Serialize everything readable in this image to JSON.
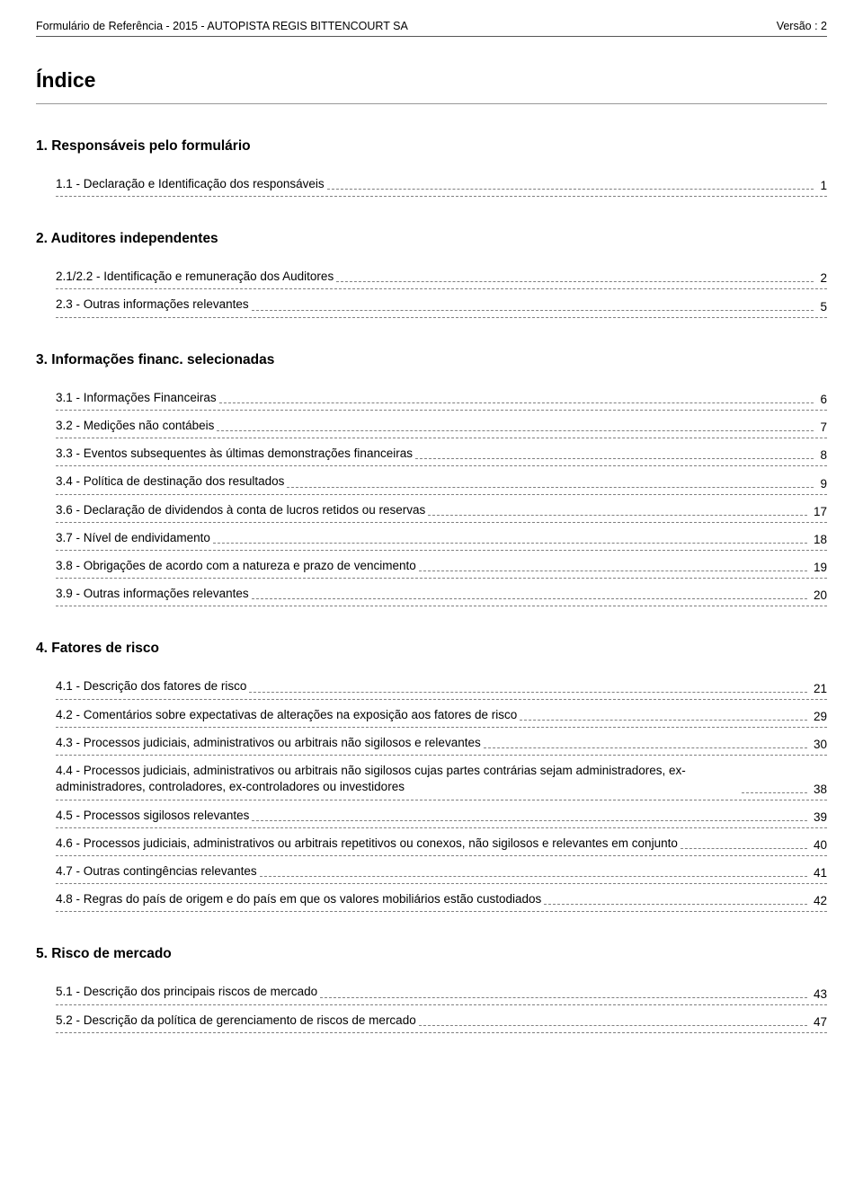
{
  "header": {
    "left": "Formulário de Referência - 2015 - AUTOPISTA REGIS BITTENCOURT SA",
    "right": "Versão : 2"
  },
  "index_title": "Índice",
  "sections": [
    {
      "heading": "1. Responsáveis pelo formulário",
      "items": [
        {
          "label": "1.1 - Declaração e Identificação dos responsáveis",
          "page": "1"
        }
      ]
    },
    {
      "heading": "2. Auditores independentes",
      "items": [
        {
          "label": "2.1/2.2 - Identificação e remuneração dos Auditores",
          "page": "2"
        },
        {
          "label": "2.3 - Outras informações relevantes",
          "page": "5"
        }
      ]
    },
    {
      "heading": "3. Informações financ. selecionadas",
      "items": [
        {
          "label": "3.1 - Informações Financeiras",
          "page": "6"
        },
        {
          "label": "3.2 - Medições não contábeis",
          "page": "7"
        },
        {
          "label": "3.3 - Eventos subsequentes às últimas demonstrações financeiras",
          "page": "8"
        },
        {
          "label": "3.4 - Política de destinação dos resultados",
          "page": "9"
        },
        {
          "label": "3.6 - Declaração de dividendos à conta de lucros retidos ou reservas",
          "page": "17"
        },
        {
          "label": "3.7 - Nível de endividamento",
          "page": "18"
        },
        {
          "label": "3.8 - Obrigações de acordo com a natureza e prazo de vencimento",
          "page": "19"
        },
        {
          "label": "3.9 - Outras informações relevantes",
          "page": "20"
        }
      ]
    },
    {
      "heading": "4. Fatores de risco",
      "items": [
        {
          "label": "4.1 - Descrição dos fatores de risco",
          "page": "21"
        },
        {
          "label": "4.2 - Comentários sobre expectativas de alterações na exposição aos fatores de risco",
          "page": "29"
        },
        {
          "label": "4.3 - Processos judiciais, administrativos ou arbitrais não sigilosos e relevantes",
          "page": "30"
        },
        {
          "label": "4.4 - Processos judiciais, administrativos ou arbitrais não sigilosos cujas partes contrárias sejam administradores, ex-administradores, controladores, ex-controladores ou investidores",
          "page": "38"
        },
        {
          "label": "4.5 - Processos sigilosos relevantes",
          "page": "39"
        },
        {
          "label": "4.6 - Processos judiciais, administrativos ou arbitrais repetitivos ou conexos, não sigilosos e relevantes em conjunto",
          "page": "40"
        },
        {
          "label": "4.7 - Outras contingências relevantes",
          "page": "41"
        },
        {
          "label": "4.8 - Regras do país de origem e  do país em que os valores mobiliários estão custodiados",
          "page": "42"
        }
      ]
    },
    {
      "heading": "5. Risco de mercado",
      "items": [
        {
          "label": "5.1 - Descrição dos principais riscos de mercado",
          "page": "43"
        },
        {
          "label": "5.2 - Descrição da política de gerenciamento de riscos de mercado",
          "page": "47"
        }
      ]
    }
  ],
  "colors": {
    "text": "#000000",
    "background": "#ffffff",
    "rule": "#555555",
    "dash": "#808080"
  },
  "typography": {
    "header_fontsize": 12.5,
    "title_fontsize": 23,
    "heading_fontsize": 15.5,
    "entry_fontsize": 13.5
  }
}
